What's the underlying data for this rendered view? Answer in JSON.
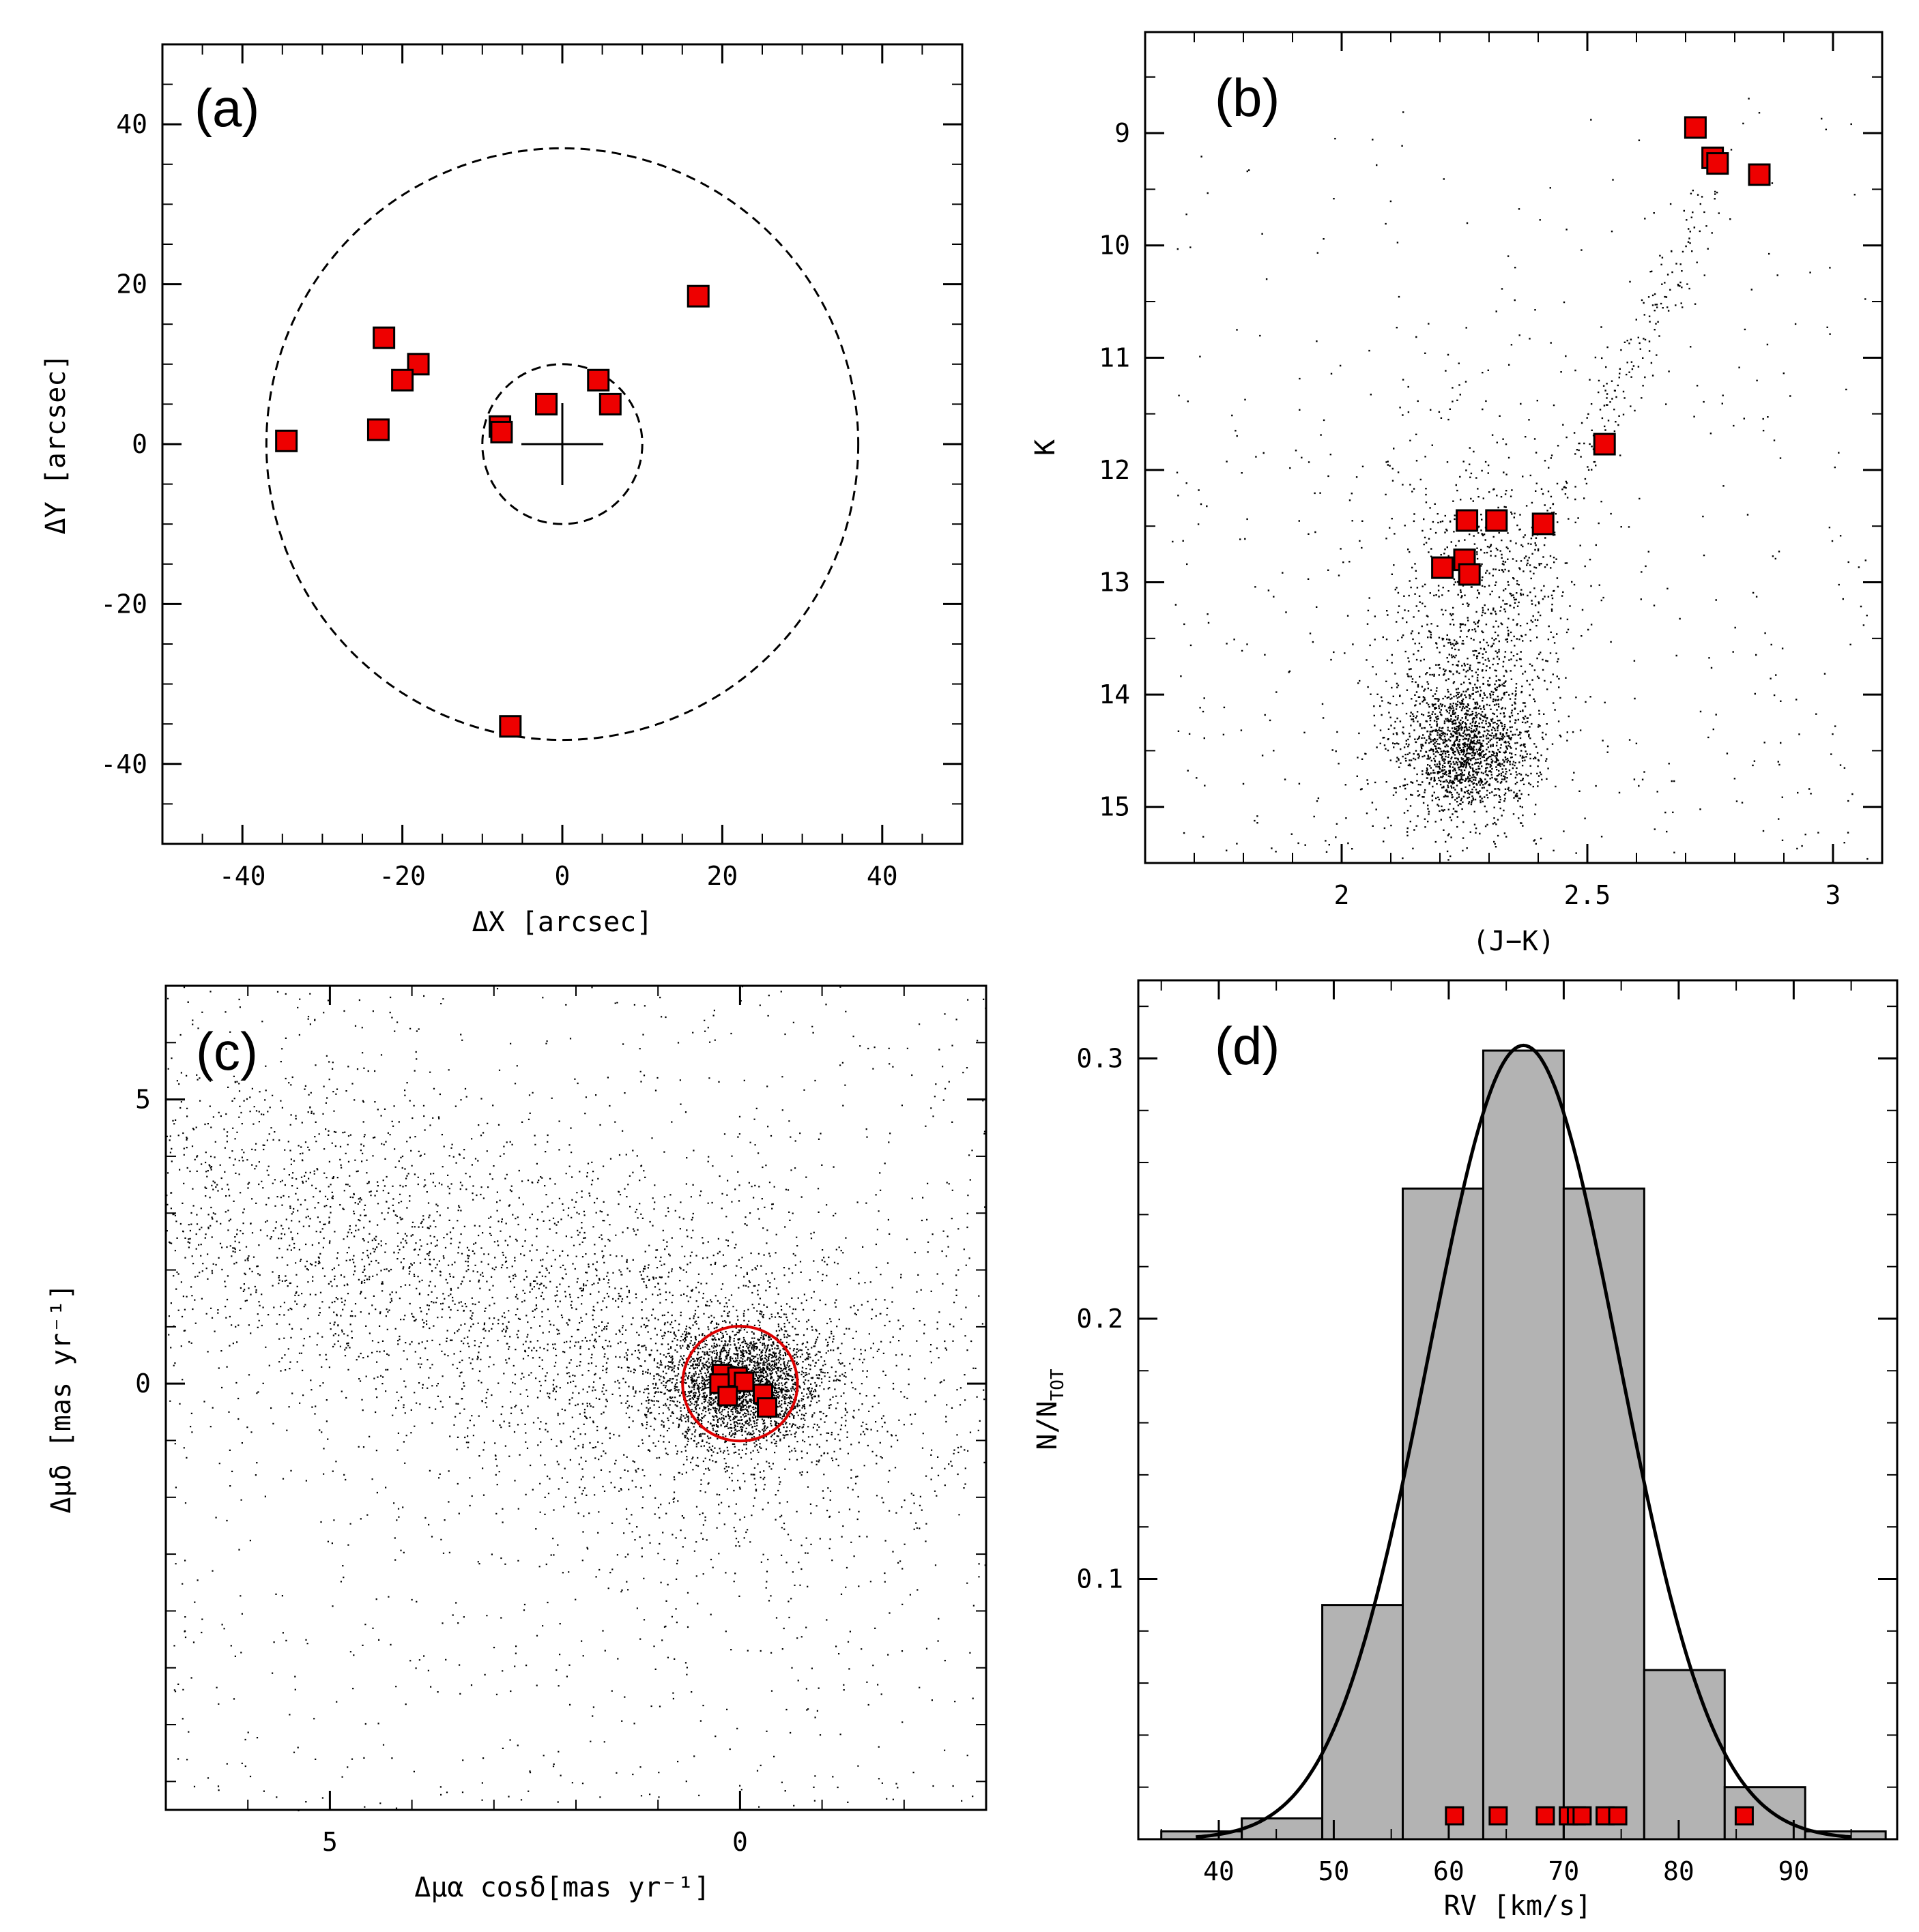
{
  "colors": {
    "marker": "#ee0000",
    "hist_fill": "#b3b3b3",
    "field": "#000000",
    "circle_c": "#dd0000"
  },
  "chart_data": [
    {
      "panel": "(a)",
      "type": "scatter",
      "xlabel": "ΔX [arcsec]",
      "ylabel": "ΔY [arcsec]",
      "xlim": [
        -50,
        50
      ],
      "ylim": [
        -50,
        50
      ],
      "xticks": [
        "-40",
        "-20",
        "0",
        "20",
        "40"
      ],
      "xtick_values": [
        -40,
        -20,
        0,
        20,
        40
      ],
      "yticks": [
        "-40",
        "-20",
        "0",
        "20",
        "40"
      ],
      "ytick_values": [
        -40,
        -20,
        0,
        20,
        40
      ],
      "center_cross": [
        0,
        0
      ],
      "dashed_circles_radius": [
        10,
        37
      ],
      "points": [
        {
          "x": 17,
          "y": 18.5
        },
        {
          "x": -22.3,
          "y": 13.3
        },
        {
          "x": -18,
          "y": 10
        },
        {
          "x": -20,
          "y": 8
        },
        {
          "x": 4.5,
          "y": 8
        },
        {
          "x": -2,
          "y": 5
        },
        {
          "x": 6,
          "y": 5
        },
        {
          "x": -7.8,
          "y": 2.2
        },
        {
          "x": -7.6,
          "y": 1.5
        },
        {
          "x": -23,
          "y": 1.8
        },
        {
          "x": -34.5,
          "y": 0.4
        },
        {
          "x": -6.5,
          "y": -35.3
        }
      ]
    },
    {
      "panel": "(b)",
      "type": "scatter",
      "xlabel": "(J−K)",
      "ylabel": "K",
      "xlim": [
        1.6,
        3.1
      ],
      "ylim": [
        15.5,
        8.1
      ],
      "xticks": [
        "2",
        "2.5",
        "3"
      ],
      "xtick_values": [
        2,
        2.5,
        3
      ],
      "yticks": [
        "9",
        "10",
        "11",
        "12",
        "13",
        "14",
        "15"
      ],
      "ytick_values": [
        9,
        10,
        11,
        12,
        13,
        14,
        15
      ],
      "points": [
        {
          "x": 2.72,
          "y": 8.95
        },
        {
          "x": 2.755,
          "y": 9.22
        },
        {
          "x": 2.765,
          "y": 9.27
        },
        {
          "x": 2.85,
          "y": 9.37
        },
        {
          "x": 2.535,
          "y": 11.77
        },
        {
          "x": 2.255,
          "y": 12.45
        },
        {
          "x": 2.315,
          "y": 12.45
        },
        {
          "x": 2.41,
          "y": 12.48
        },
        {
          "x": 2.205,
          "y": 12.87
        },
        {
          "x": 2.25,
          "y": 12.8
        },
        {
          "x": 2.26,
          "y": 12.93
        }
      ]
    },
    {
      "panel": "(c)",
      "type": "scatter",
      "xlabel": "Δμα cosδ[mas yr⁻¹]",
      "ylabel": "Δμδ [mas yr⁻¹]",
      "xlim": [
        7,
        -3
      ],
      "ylim": [
        -7.5,
        7
      ],
      "xticks": [
        "5",
        "0"
      ],
      "xtick_values": [
        5,
        0
      ],
      "yticks": [
        "5",
        "0"
      ],
      "ytick_values": [
        5,
        0
      ],
      "selection_circle": {
        "x": 0,
        "y": 0,
        "r": 0.7
      },
      "points": [
        {
          "x": 0.22,
          "y": 0.17
        },
        {
          "x": 0.03,
          "y": 0.12
        },
        {
          "x": -0.05,
          "y": 0.03
        },
        {
          "x": 0.25,
          "y": 0.0
        },
        {
          "x": 0.15,
          "y": -0.22
        },
        {
          "x": -0.28,
          "y": -0.18
        },
        {
          "x": -0.33,
          "y": -0.42
        }
      ]
    },
    {
      "panel": "(d)",
      "type": "bar",
      "xlabel": "RV [km/s]",
      "ylabel": "N/N_TOT",
      "ylabel_main": "N/N",
      "ylabel_sub": "TOT",
      "xlim": [
        33,
        99
      ],
      "ylim": [
        0,
        0.33
      ],
      "xticks": [
        "40",
        "50",
        "60",
        "70",
        "80",
        "90"
      ],
      "xtick_values": [
        40,
        50,
        60,
        70,
        80,
        90
      ],
      "yticks": [
        "0.1",
        "0.2",
        "0.3"
      ],
      "ytick_values": [
        0.1,
        0.2,
        0.3
      ],
      "bins": [
        {
          "x0": 35,
          "x1": 42,
          "value": 0.003
        },
        {
          "x0": 42,
          "x1": 49,
          "value": 0.008
        },
        {
          "x0": 49,
          "x1": 56,
          "value": 0.09
        },
        {
          "x0": 56,
          "x1": 63,
          "value": 0.25
        },
        {
          "x0": 63,
          "x1": 70,
          "value": 0.303
        },
        {
          "x0": 70,
          "x1": 77,
          "value": 0.25
        },
        {
          "x0": 77,
          "x1": 84,
          "value": 0.065
        },
        {
          "x0": 84,
          "x1": 91,
          "value": 0.02
        },
        {
          "x0": 91,
          "x1": 98,
          "value": 0.003
        }
      ],
      "gaussian": {
        "peak": 0.305,
        "mean": 66.5,
        "sigma": 8.3
      },
      "stars_rv": [
        60.5,
        64.3,
        68.4,
        70.4,
        71.1,
        71.6,
        73.6,
        74.7,
        85.7
      ],
      "stars_level": 0.009
    }
  ]
}
